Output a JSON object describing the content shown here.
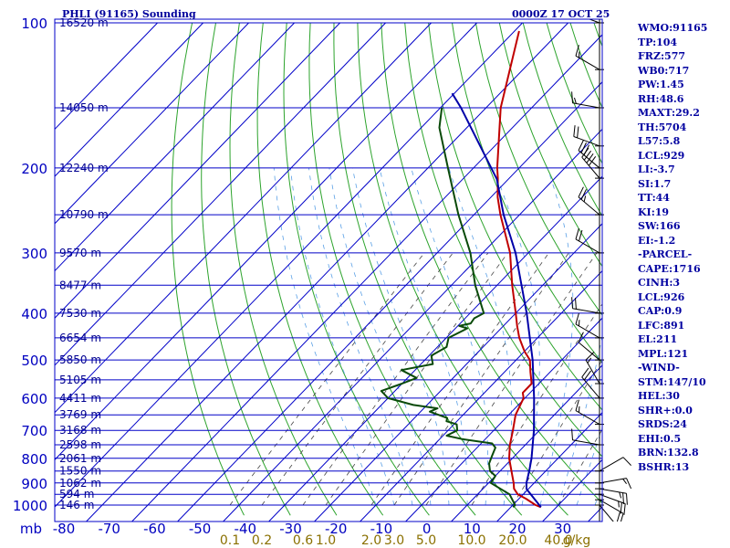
{
  "header": {
    "station": "PHLI (91165) Sounding",
    "datetime": "0000Z 17 OCT 25"
  },
  "indices": [
    "WMO:91165",
    "TP:104",
    "FRZ:577",
    "WB0:717",
    "PW:1.45",
    "RH:48.6",
    "MAXT:29.2",
    "TH:5704",
    "L57:5.8",
    "LCL:929",
    "LI:-3.7",
    "SI:1.7",
    "TT:44",
    "KI:19",
    "SW:166",
    "EI:-1.2",
    "-PARCEL-",
    "CAPE:1716",
    "CINH:3",
    "LCL:926",
    "CAP:0.9",
    "LFC:891",
    "EL:211",
    "MPL:121",
    "-WIND-",
    "STM:147/10",
    "HEL:30",
    "SHR+:0.0",
    "SRDS:24",
    "EHI:0.5",
    "BRN:132.8",
    "BSHR:13"
  ],
  "chart_data": {
    "type": "line",
    "title": "PHLI (91165) Sounding",
    "subtitle": "0000Z 17 OCT 25",
    "xlabel": "",
    "ylabel": "mb",
    "xlim": [
      -80,
      40
    ],
    "ylim": [
      1000,
      100
    ],
    "y_scale": "log",
    "grid": true,
    "pressure_ticks": [
      100,
      200,
      300,
      400,
      500,
      600,
      700,
      800,
      900,
      1000
    ],
    "temperature_ticks": [
      "-80",
      "-70",
      "-60",
      "-50",
      "-40",
      "-30",
      "-20",
      "-10",
      "0",
      "10",
      "20",
      "30"
    ],
    "mixing_ratio_labels": [
      {
        "label": "0.1",
        "t": -42
      },
      {
        "label": "0.2",
        "t": -35
      },
      {
        "label": "0.6",
        "t": -26
      },
      {
        "label": "1.0",
        "t": -21
      },
      {
        "label": "2.0",
        "t": -11
      },
      {
        "label": "3.0",
        "t": -6
      },
      {
        "label": "5.0",
        "t": 1
      },
      {
        "label": "10.0",
        "t": 11
      },
      {
        "label": "20.0",
        "t": 20
      },
      {
        "label": "40.0",
        "t": 30
      },
      {
        "label": "g/kg",
        "t": 34
      }
    ],
    "height_labels": [
      {
        "p": 100,
        "text": "16520 m"
      },
      {
        "p": 150,
        "text": "14050 m"
      },
      {
        "p": 200,
        "text": "12240 m"
      },
      {
        "p": 250,
        "text": "10790 m"
      },
      {
        "p": 300,
        "text": "9570 m"
      },
      {
        "p": 350,
        "text": "8477 m"
      },
      {
        "p": 400,
        "text": "7530 m"
      },
      {
        "p": 450,
        "text": "6654 m"
      },
      {
        "p": 500,
        "text": "5850 m"
      },
      {
        "p": 550,
        "text": "5105 m"
      },
      {
        "p": 600,
        "text": "4411 m"
      },
      {
        "p": 650,
        "text": "3769 m"
      },
      {
        "p": 700,
        "text": "3168 m"
      },
      {
        "p": 750,
        "text": "2598 m"
      },
      {
        "p": 800,
        "text": "2061 m"
      },
      {
        "p": 850,
        "text": "1550 m"
      },
      {
        "p": 900,
        "text": "1062 m"
      },
      {
        "p": 950,
        "text": "594 m"
      },
      {
        "p": 1000,
        "text": "146 m"
      }
    ],
    "series": [
      {
        "id": "temperature",
        "color": "#c00000",
        "points": [
          [
            1010,
            26.6
          ],
          [
            1000,
            25
          ],
          [
            970,
            21.5
          ],
          [
            950,
            18.8
          ],
          [
            925,
            16.8
          ],
          [
            900,
            15.5
          ],
          [
            850,
            12.5
          ],
          [
            800,
            9.3
          ],
          [
            750,
            6.6
          ],
          [
            700,
            4.2
          ],
          [
            650,
            1.5
          ],
          [
            600,
            -0.3
          ],
          [
            585,
            -1.6
          ],
          [
            560,
            -1.6
          ],
          [
            530,
            -4.3
          ],
          [
            500,
            -7
          ],
          [
            480,
            -10
          ],
          [
            450,
            -14
          ],
          [
            425,
            -17
          ],
          [
            400,
            -20
          ],
          [
            350,
            -26.7
          ],
          [
            300,
            -34
          ],
          [
            250,
            -44.2
          ],
          [
            230,
            -48.5
          ],
          [
            210,
            -52.5
          ],
          [
            200,
            -54.8
          ],
          [
            150,
            -66.8
          ],
          [
            104,
            -79
          ]
        ]
      },
      {
        "id": "dewpoint",
        "color": "#0a4a0a",
        "points": [
          [
            1010,
            20.5
          ],
          [
            1000,
            20.5
          ],
          [
            950,
            17
          ],
          [
            900,
            10.5
          ],
          [
            870,
            10
          ],
          [
            850,
            7.8
          ],
          [
            820,
            6
          ],
          [
            790,
            5
          ],
          [
            760,
            4
          ],
          [
            745,
            2.4
          ],
          [
            730,
            -5
          ],
          [
            718,
            -9.2
          ],
          [
            700,
            -8
          ],
          [
            680,
            -9.4
          ],
          [
            670,
            -12.3
          ],
          [
            660,
            -12.8
          ],
          [
            640,
            -18
          ],
          [
            630,
            -17
          ],
          [
            620,
            -23
          ],
          [
            600,
            -30
          ],
          [
            580,
            -33
          ],
          [
            560,
            -30
          ],
          [
            545,
            -28
          ],
          [
            525,
            -33
          ],
          [
            510,
            -27.4
          ],
          [
            490,
            -29.5
          ],
          [
            470,
            -28
          ],
          [
            450,
            -29.5
          ],
          [
            430,
            -27.4
          ],
          [
            425,
            -29.7
          ],
          [
            420,
            -27.7
          ],
          [
            410,
            -28
          ],
          [
            400,
            -27
          ],
          [
            350,
            -34.8
          ],
          [
            300,
            -42.7
          ],
          [
            250,
            -53.4
          ],
          [
            200,
            -65.6
          ],
          [
            165,
            -76
          ],
          [
            150,
            -79.7
          ]
        ]
      },
      {
        "id": "parcel",
        "color": "#0000a8",
        "points": [
          [
            1010,
            26.6
          ],
          [
            926,
            19.6
          ],
          [
            900,
            18.3
          ],
          [
            850,
            16.4
          ],
          [
            800,
            14.2
          ],
          [
            700,
            8.8
          ],
          [
            600,
            2
          ],
          [
            500,
            -6.4
          ],
          [
            400,
            -17.6
          ],
          [
            300,
            -32.8
          ],
          [
            250,
            -43.5
          ],
          [
            211,
            -52.5
          ],
          [
            150,
            -75.5
          ],
          [
            140,
            -80.5
          ]
        ]
      }
    ],
    "wind_barbs": [
      {
        "p": 1000,
        "dir": 140,
        "kt": 10
      },
      {
        "p": 975,
        "dir": 120,
        "kt": 20
      },
      {
        "p": 950,
        "dir": 110,
        "kt": 25
      },
      {
        "p": 925,
        "dir": 100,
        "kt": 25
      },
      {
        "p": 900,
        "dir": 80,
        "kt": 15
      },
      {
        "p": 850,
        "dir": 60,
        "kt": 10
      },
      {
        "p": 750,
        "dir": 280,
        "kt": 10
      },
      {
        "p": 680,
        "dir": 300,
        "kt": 15
      },
      {
        "p": 600,
        "dir": 320,
        "kt": 20
      },
      {
        "p": 560,
        "dir": 330,
        "kt": 15
      },
      {
        "p": 500,
        "dir": 310,
        "kt": 10
      },
      {
        "p": 450,
        "dir": 300,
        "kt": 15
      },
      {
        "p": 400,
        "dir": 280,
        "kt": 20
      },
      {
        "p": 300,
        "dir": 300,
        "kt": 20
      },
      {
        "p": 250,
        "dir": 310,
        "kt": 25
      },
      {
        "p": 210,
        "dir": 320,
        "kt": 40
      },
      {
        "p": 200,
        "dir": 310,
        "kt": 30
      },
      {
        "p": 180,
        "dir": 290,
        "kt": 20
      },
      {
        "p": 150,
        "dir": 280,
        "kt": 15
      },
      {
        "p": 125,
        "dir": 300,
        "kt": 15
      },
      {
        "p": 100,
        "dir": 290,
        "kt": 15
      }
    ]
  }
}
